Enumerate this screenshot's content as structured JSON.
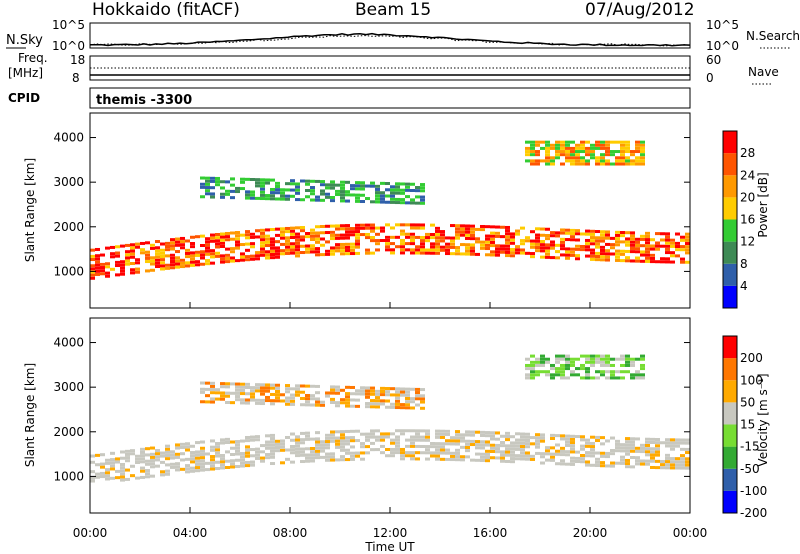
{
  "header": {
    "title": "Hokkaido (fitACF)",
    "beam": "Beam 15",
    "date": "07/Aug/2012"
  },
  "noise_panel": {
    "left_label": "N.Sky",
    "right_label": "N.Search",
    "left_ticks": [
      "10^5",
      "10^0"
    ],
    "right_ticks": [
      "10^5",
      "10^0"
    ]
  },
  "freq_panel": {
    "left_label_1": "Freq.",
    "left_label_2": "[MHz]",
    "left_ticks": [
      "18",
      "8"
    ],
    "right_label": "Nave",
    "right_ticks": [
      "60",
      "0"
    ]
  },
  "cpid_panel": {
    "label": "CPID",
    "value": "themis -3300"
  },
  "chart_data": [
    {
      "type": "heatmap",
      "name": "power",
      "ylabel": "Slant Range [km]",
      "yticks": [
        1000,
        2000,
        3000,
        4000
      ],
      "ylim": [
        180,
        4550
      ],
      "colorbar_label": "Power [dB]",
      "colorbar_ticks": [
        "4",
        "8",
        "12",
        "16",
        "20",
        "24",
        "28"
      ],
      "colors": [
        "#0000ff",
        "#2f5faa",
        "#3e8a55",
        "#33cc33",
        "#ffcc00",
        "#ff9900",
        "#ff5500",
        "#ff0000"
      ]
    },
    {
      "type": "heatmap",
      "name": "velocity",
      "ylabel": "Slant Range [km]",
      "yticks": [
        1000,
        2000,
        3000,
        4000
      ],
      "ylim": [
        180,
        4550
      ],
      "colorbar_label": "Velocity [m s⁻¹]",
      "colorbar_ticks": [
        "200",
        "100",
        "50",
        "15",
        "-15",
        "-50",
        "-100",
        "-200"
      ],
      "colors": [
        "#0000ff",
        "#2f5faa",
        "#33aa33",
        "#77dd33",
        "#c8c8c0",
        "#ffaa00",
        "#ff7700",
        "#ff0000"
      ]
    }
  ],
  "xaxis": {
    "label": "Time UT",
    "ticks": [
      "00:00",
      "04:00",
      "08:00",
      "12:00",
      "16:00",
      "20:00",
      "00:00"
    ]
  }
}
